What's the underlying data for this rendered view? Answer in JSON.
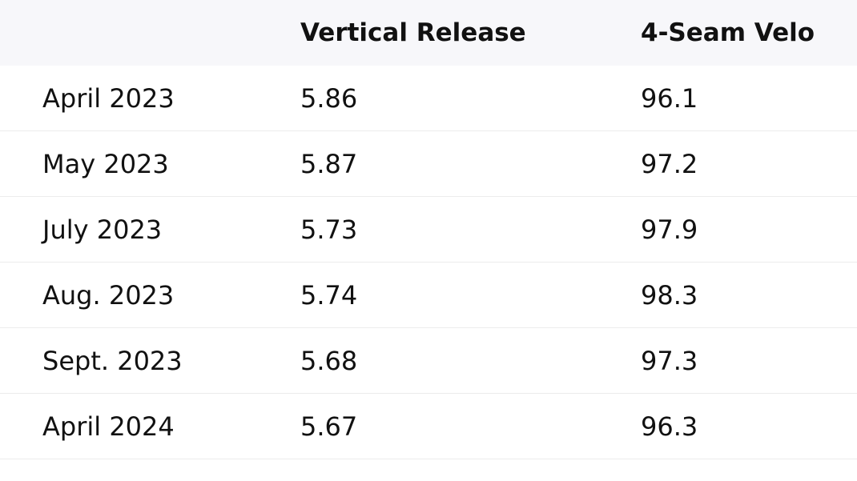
{
  "table": {
    "header": [
      "",
      "Vertical Release",
      "4-Seam Velo"
    ],
    "rows": [
      [
        "April 2023",
        "5.86",
        "96.1"
      ],
      [
        "May 2023",
        "5.87",
        "97.2"
      ],
      [
        "July 2023",
        "5.73",
        "97.9"
      ],
      [
        "Aug. 2023",
        "5.74",
        "98.3"
      ],
      [
        "Sept. 2023",
        "5.68",
        "97.3"
      ],
      [
        "April 2024",
        "5.67",
        "96.3"
      ]
    ]
  }
}
